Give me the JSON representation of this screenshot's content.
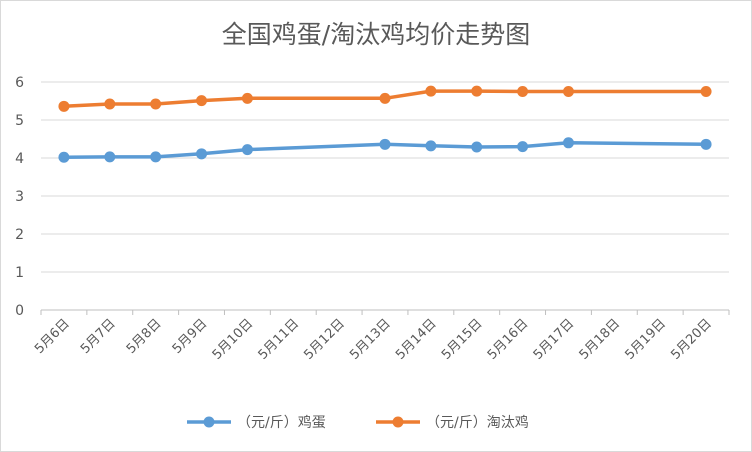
{
  "chart_data": {
    "type": "line",
    "title": "全国鸡蛋/淘汰鸡均价走势图",
    "categories": [
      "5月6日",
      "5月7日",
      "5月8日",
      "5月9日",
      "5月10日",
      "5月11日",
      "5月12日",
      "5月13日",
      "5月14日",
      "5月15日",
      "5月16日",
      "5月17日",
      "5月18日",
      "5月19日",
      "5月20日"
    ],
    "ylim": [
      0,
      6
    ],
    "yticks": [
      "0",
      "1",
      "2",
      "3",
      "4",
      "5",
      "6"
    ],
    "grid": true,
    "legend_position": "bottom",
    "series": [
      {
        "name": "（元/斤）鸡蛋",
        "color": "#5b9bd5",
        "points": [
          {
            "x": "5月6日",
            "y": 4.02
          },
          {
            "x": "5月7日",
            "y": 4.03
          },
          {
            "x": "5月8日",
            "y": 4.03
          },
          {
            "x": "5月9日",
            "y": 4.11
          },
          {
            "x": "5月10日",
            "y": 4.22
          },
          {
            "x": "5月13日",
            "y": 4.36
          },
          {
            "x": "5月14日",
            "y": 4.32
          },
          {
            "x": "5月15日",
            "y": 4.29
          },
          {
            "x": "5月16日",
            "y": 4.3
          },
          {
            "x": "5月17日",
            "y": 4.4
          },
          {
            "x": "5月20日",
            "y": 4.36
          }
        ]
      },
      {
        "name": "（元/斤）淘汰鸡",
        "color": "#ed7d31",
        "points": [
          {
            "x": "5月6日",
            "y": 5.36
          },
          {
            "x": "5月7日",
            "y": 5.42
          },
          {
            "x": "5月8日",
            "y": 5.42
          },
          {
            "x": "5月9日",
            "y": 5.51
          },
          {
            "x": "5月10日",
            "y": 5.57
          },
          {
            "x": "5月13日",
            "y": 5.57
          },
          {
            "x": "5月14日",
            "y": 5.76
          },
          {
            "x": "5月15日",
            "y": 5.76
          },
          {
            "x": "5月16日",
            "y": 5.75
          },
          {
            "x": "5月17日",
            "y": 5.75
          },
          {
            "x": "5月20日",
            "y": 5.75
          }
        ]
      }
    ]
  }
}
